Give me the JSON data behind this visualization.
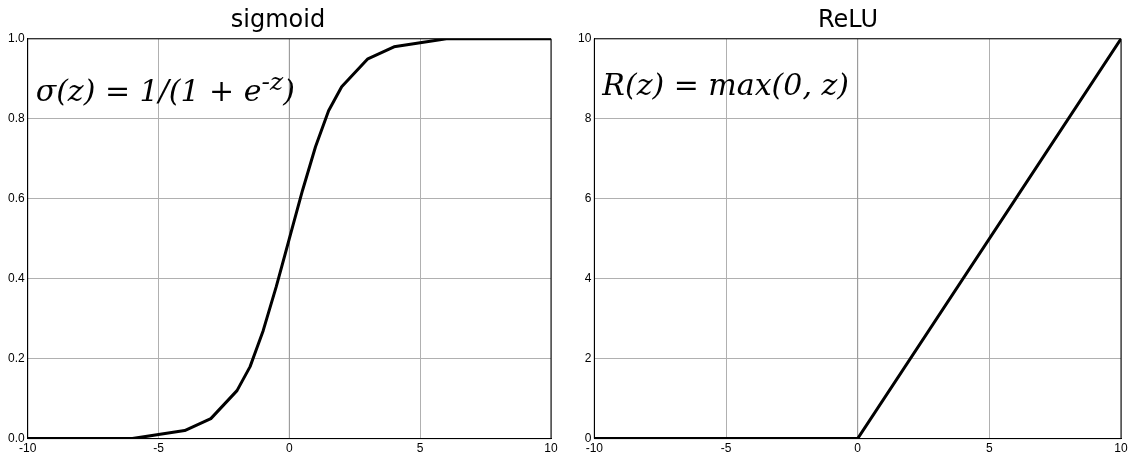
{
  "chart_data": [
    {
      "type": "line",
      "title": "sigmoid",
      "x": [
        -10,
        -8,
        -6,
        -5,
        -4,
        -3,
        -2,
        -1.5,
        -1,
        -0.5,
        0,
        0.5,
        1,
        1.5,
        2,
        3,
        4,
        5,
        6,
        8,
        10
      ],
      "series": [
        {
          "color": "#000000",
          "values": [
            0.0,
            0.0,
            0.0,
            0.01,
            0.02,
            0.05,
            0.12,
            0.18,
            0.27,
            0.38,
            0.5,
            0.62,
            0.73,
            0.82,
            0.88,
            0.95,
            0.98,
            0.99,
            1.0,
            1.0,
            1.0
          ]
        }
      ],
      "xlim": [
        -10,
        10
      ],
      "xticks": [
        -10,
        -5,
        0,
        5,
        10
      ],
      "ylim": [
        0,
        1
      ],
      "yticks": [
        {
          "value": 0,
          "label": "0.0"
        },
        {
          "value": 0.2,
          "label": "0.2"
        },
        {
          "value": 0.4,
          "label": "0.4"
        },
        {
          "value": 0.6,
          "label": "0.6"
        },
        {
          "value": 0.8,
          "label": "0.8"
        },
        {
          "value": 1,
          "label": "1.0"
        }
      ],
      "grid": true,
      "marker": "none",
      "line_style": "solid",
      "legend": false,
      "ref_lines": [
        {
          "axis": "x",
          "value": 0,
          "color": "#999999"
        }
      ],
      "annotations": [
        "σ(z) = 1/(1 + e$^{-z}$)"
      ]
    },
    {
      "type": "line",
      "title": "ReLU",
      "x": [
        -10,
        0,
        10
      ],
      "series": [
        {
          "color": "#000000",
          "values": [
            0,
            0,
            10
          ]
        }
      ],
      "xlim": [
        -10,
        10
      ],
      "xticks": [
        -10,
        -5,
        0,
        5,
        10
      ],
      "ylim": [
        0,
        10
      ],
      "yticks": [
        0,
        2,
        4,
        6,
        8,
        10
      ],
      "grid": true,
      "marker": "none",
      "line_style": "solid",
      "legend": false,
      "ref_lines": [
        {
          "axis": "x",
          "value": 0,
          "color": "#999999"
        }
      ],
      "annotations": [
        "R(z) = max(0,  z)"
      ]
    }
  ]
}
